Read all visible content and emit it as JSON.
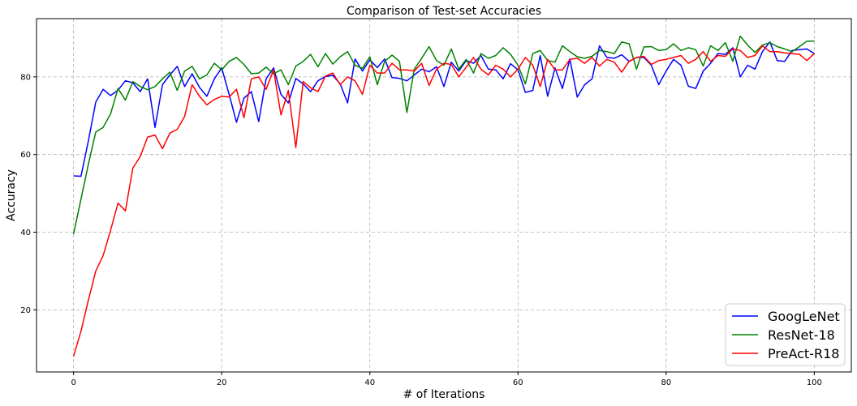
{
  "chart_data": {
    "type": "line",
    "title": "Comparison of Test-set Accuracies",
    "xlabel": "# of Iterations",
    "ylabel": "Accuracy",
    "xlim": [
      -5,
      105
    ],
    "ylim": [
      4,
      95
    ],
    "xticks": [
      0,
      20,
      40,
      60,
      80,
      100
    ],
    "yticks": [
      20,
      40,
      60,
      80
    ],
    "grid": true,
    "legend_position": "lower-right",
    "x": [
      0,
      1,
      2,
      3,
      4,
      5,
      6,
      7,
      8,
      9,
      10,
      11,
      12,
      13,
      14,
      15,
      16,
      17,
      18,
      19,
      20,
      21,
      22,
      23,
      24,
      25,
      26,
      27,
      28,
      29,
      30,
      31,
      32,
      33,
      34,
      35,
      36,
      37,
      38,
      39,
      40,
      41,
      42,
      43,
      44,
      45,
      46,
      47,
      48,
      49,
      50,
      51,
      52,
      53,
      54,
      55,
      56,
      57,
      58,
      59,
      60,
      61,
      62,
      63,
      64,
      65,
      66,
      67,
      68,
      69,
      70,
      71,
      72,
      73,
      74,
      75,
      76,
      77,
      78,
      79,
      80,
      81,
      82,
      83,
      84,
      85,
      86,
      87,
      88,
      89,
      90,
      91,
      92,
      93,
      94,
      95,
      96,
      97,
      98,
      99,
      100
    ],
    "series": [
      {
        "name": "GoogLeNet",
        "color": "#0000ff",
        "values": [
          54.5,
          54.4,
          63.5,
          73.5,
          76.8,
          75.2,
          76.6,
          79.0,
          78.5,
          76.2,
          79.5,
          67.0,
          78.0,
          80.5,
          82.7,
          77.5,
          80.8,
          77.3,
          75.0,
          79.5,
          82.3,
          75.5,
          68.3,
          74.5,
          76.2,
          68.5,
          79.5,
          82.3,
          75.5,
          73.3,
          79.6,
          78.2,
          76.2,
          79.0,
          80.1,
          80.4,
          78.2,
          73.3,
          84.6,
          81.5,
          84.4,
          82.4,
          84.6,
          79.8,
          79.6,
          79.0,
          80.5,
          82.0,
          81.3,
          82.6,
          77.5,
          83.8,
          81.5,
          84.2,
          83.5,
          85.5,
          82.0,
          81.8,
          79.5,
          83.4,
          81.8,
          76.0,
          76.5,
          85.5,
          75.0,
          82.3,
          77.0,
          84.6,
          74.8,
          78.0,
          79.5,
          88.0,
          85.0,
          84.8,
          85.7,
          84.0,
          85.0,
          85.0,
          83.0,
          78.0,
          81.5,
          84.5,
          83.0,
          77.6,
          77.0,
          81.5,
          83.5,
          86.0,
          85.8,
          87.5,
          80.0,
          83.0,
          82.0,
          86.5,
          89.0,
          84.2,
          84.0,
          86.8,
          87.0,
          87.2,
          86.0
        ]
      },
      {
        "name": "ResNet-18",
        "color": "#008000",
        "values": [
          39.5,
          48.5,
          57.5,
          65.8,
          67.0,
          70.5,
          77.0,
          74.0,
          78.8,
          77.5,
          76.7,
          77.5,
          79.5,
          81.2,
          76.5,
          81.5,
          82.7,
          79.5,
          80.5,
          83.5,
          81.8,
          84.0,
          85.0,
          83.2,
          80.8,
          81.0,
          82.5,
          80.8,
          81.8,
          78.0,
          82.8,
          84.0,
          85.8,
          82.6,
          86.0,
          83.3,
          85.2,
          86.5,
          83.0,
          82.2,
          85.2,
          78.0,
          84.0,
          85.6,
          84.0,
          70.8,
          82.0,
          84.8,
          87.8,
          84.2,
          83.0,
          87.2,
          82.0,
          84.5,
          81.0,
          86.0,
          84.8,
          85.5,
          87.5,
          85.8,
          83.0,
          78.2,
          86.0,
          86.8,
          84.2,
          83.8,
          88.0,
          86.5,
          85.2,
          84.8,
          85.3,
          86.8,
          86.5,
          86.0,
          89.0,
          88.5,
          82.0,
          87.7,
          87.8,
          86.8,
          87.0,
          88.5,
          86.8,
          87.5,
          87.0,
          82.8,
          88.0,
          86.8,
          88.8,
          84.0,
          90.5,
          88.2,
          86.3,
          88.2,
          88.8,
          87.8,
          87.2,
          86.5,
          87.8,
          89.2,
          89.2
        ]
      },
      {
        "name": "PreAct-R18",
        "color": "#ff0000",
        "values": [
          8.0,
          14.5,
          22.5,
          30.0,
          34.0,
          40.5,
          47.5,
          45.5,
          56.5,
          59.5,
          64.5,
          65.0,
          61.5,
          65.5,
          66.5,
          69.8,
          78.0,
          75.0,
          72.8,
          74.2,
          75.0,
          74.8,
          76.8,
          69.5,
          79.5,
          80.0,
          76.8,
          81.8,
          70.2,
          76.5,
          61.8,
          78.8,
          77.2,
          76.2,
          80.2,
          81.0,
          78.0,
          80.0,
          79.0,
          75.5,
          83.0,
          81.0,
          81.0,
          83.5,
          81.8,
          81.8,
          81.5,
          83.5,
          77.8,
          82.0,
          83.5,
          83.2,
          80.0,
          82.5,
          85.0,
          82.0,
          80.5,
          83.0,
          82.0,
          80.0,
          82.0,
          85.0,
          83.0,
          77.5,
          84.5,
          81.8,
          81.8,
          84.5,
          84.8,
          83.5,
          85.0,
          82.8,
          84.5,
          83.8,
          81.2,
          84.0,
          85.0,
          85.3,
          83.2,
          84.2,
          84.5,
          85.0,
          85.5,
          83.5,
          84.5,
          86.5,
          84.0,
          85.5,
          85.3,
          87.2,
          86.8,
          85.0,
          85.5,
          88.0,
          86.5,
          86.5,
          86.2,
          86.0,
          85.8,
          84.2,
          86.0
        ]
      }
    ]
  }
}
